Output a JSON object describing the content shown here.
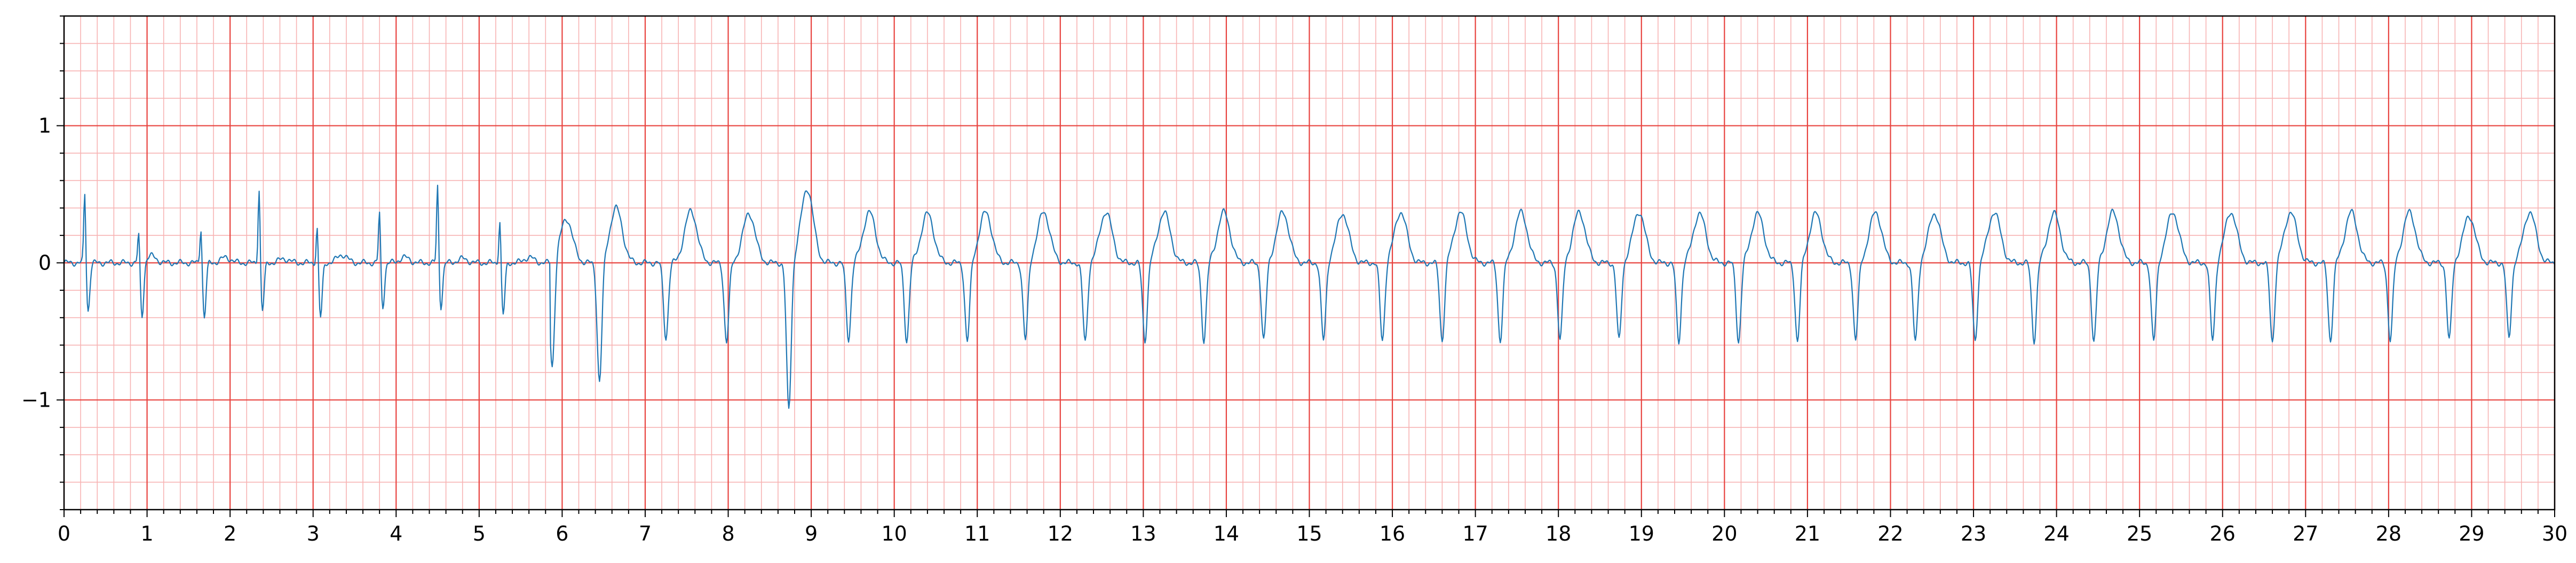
{
  "chart_data": {
    "type": "line",
    "title": "",
    "xlabel": "",
    "ylabel": "",
    "xlim": [
      0,
      30
    ],
    "ylim": [
      -1.8,
      1.8
    ],
    "grid": true,
    "x_ticks": [
      0,
      1,
      2,
      3,
      4,
      5,
      6,
      7,
      8,
      9,
      10,
      11,
      12,
      13,
      14,
      15,
      16,
      17,
      18,
      19,
      20,
      21,
      22,
      23,
      24,
      25,
      26,
      27,
      28,
      29,
      30
    ],
    "x_tick_labels": [
      "0",
      "1",
      "2",
      "3",
      "4",
      "5",
      "6",
      "7",
      "8",
      "9",
      "10",
      "11",
      "12",
      "13",
      "14",
      "15",
      "16",
      "17",
      "18",
      "19",
      "20",
      "21",
      "22",
      "23",
      "24",
      "25",
      "26",
      "27",
      "28",
      "29",
      "30"
    ],
    "y_ticks": [
      -1,
      0,
      1
    ],
    "y_tick_labels": [
      "−1",
      "0",
      "1"
    ],
    "major_grid_step": {
      "x": 1,
      "y": 1
    },
    "minor_grid_step": {
      "x": 0.2,
      "y": 0.2
    },
    "colors": {
      "trace": "#1f77b4",
      "major_grid": "#e8433f",
      "minor_grid": "#f7b3b3",
      "axes": "#000000"
    },
    "series": [
      {
        "sampled_every_s": 0.01,
        "segments": [
          {
            "start": 0,
            "beats": [
              {
                "t": 0.25,
                "r": 0.55,
                "s": -0.35,
                "tw": 0.0,
                "tx": 0.0
              },
              {
                "t": 0.9,
                "r": 0.25,
                "s": -0.4,
                "tw": 0.05,
                "tx": 1.05
              },
              {
                "t": 1.65,
                "r": 0.3,
                "s": -0.4,
                "tw": 0.04,
                "tx": 1.95
              },
              {
                "t": 2.35,
                "r": 0.58,
                "s": -0.35,
                "tw": 0.03,
                "tx": 2.65
              },
              {
                "t": 3.05,
                "r": 0.3,
                "s": -0.4,
                "tw": 0.06,
                "tx": 3.35
              },
              {
                "t": 3.8,
                "r": 0.4,
                "s": -0.32,
                "tw": 0.04,
                "tx": 4.1
              },
              {
                "t": 4.5,
                "r": 0.6,
                "s": -0.32,
                "tw": 0.03,
                "tx": 4.8
              },
              {
                "t": 5.25,
                "r": 0.35,
                "s": -0.38,
                "tw": 0.04,
                "tx": 5.6
              }
            ]
          },
          {
            "start": 5.85,
            "beats": [
              {
                "t": 5.88,
                "r": 0.0,
                "s": -0.78,
                "tw": 0.32,
                "tx": 6.05
              },
              {
                "t": 6.45,
                "r": 0.0,
                "s": -0.88,
                "tw": 0.4,
                "tx": 6.65
              },
              {
                "t": 7.25,
                "r": 0.0,
                "s": -0.55,
                "tw": 0.38,
                "tx": 7.55
              },
              {
                "t": 7.98,
                "r": 0.0,
                "s": -0.58,
                "tw": 0.36,
                "tx": 8.25
              },
              {
                "t": 8.73,
                "r": 0.0,
                "s": -1.08,
                "tw": 0.54,
                "tx": 8.95
              },
              {
                "t": 9.45,
                "r": 0.0,
                "s": -0.56,
                "tw": 0.37,
                "tx": 9.7
              },
              {
                "t": 10.15,
                "r": 0.0,
                "s": -0.57,
                "tw": 0.36,
                "tx": 10.4
              },
              {
                "t": 10.88,
                "r": 0.0,
                "s": -0.58,
                "tw": 0.37,
                "tx": 11.1
              },
              {
                "t": 11.58,
                "r": 0.0,
                "s": -0.57,
                "tw": 0.37,
                "tx": 11.8
              },
              {
                "t": 12.3,
                "r": 0.0,
                "s": -0.58,
                "tw": 0.37,
                "tx": 12.55
              },
              {
                "t": 13.02,
                "r": 0.0,
                "s": -0.57,
                "tw": 0.37,
                "tx": 13.25
              },
              {
                "t": 13.73,
                "r": 0.0,
                "s": -0.57,
                "tw": 0.37,
                "tx": 13.97
              },
              {
                "t": 14.45,
                "r": 0.0,
                "s": -0.57,
                "tw": 0.37,
                "tx": 14.68
              },
              {
                "t": 15.17,
                "r": 0.0,
                "s": -0.57,
                "tw": 0.36,
                "tx": 15.4
              },
              {
                "t": 15.88,
                "r": 0.0,
                "s": -0.57,
                "tw": 0.37,
                "tx": 16.1
              },
              {
                "t": 16.6,
                "r": 0.0,
                "s": -0.57,
                "tw": 0.37,
                "tx": 16.82
              },
              {
                "t": 17.3,
                "r": 0.0,
                "s": -0.57,
                "tw": 0.37,
                "tx": 17.55
              },
              {
                "t": 18.02,
                "r": 0.0,
                "s": -0.57,
                "tw": 0.37,
                "tx": 18.25
              },
              {
                "t": 18.73,
                "r": 0.0,
                "s": -0.57,
                "tw": 0.37,
                "tx": 18.97
              },
              {
                "t": 19.45,
                "r": 0.0,
                "s": -0.58,
                "tw": 0.36,
                "tx": 19.7
              },
              {
                "t": 20.17,
                "r": 0.0,
                "s": -0.58,
                "tw": 0.36,
                "tx": 20.4
              },
              {
                "t": 20.88,
                "r": 0.0,
                "s": -0.58,
                "tw": 0.36,
                "tx": 21.1
              },
              {
                "t": 21.58,
                "r": 0.0,
                "s": -0.57,
                "tw": 0.37,
                "tx": 21.82
              },
              {
                "t": 22.3,
                "r": 0.0,
                "s": -0.58,
                "tw": 0.36,
                "tx": 22.53
              },
              {
                "t": 23.02,
                "r": 0.0,
                "s": -0.57,
                "tw": 0.37,
                "tx": 23.25
              },
              {
                "t": 23.73,
                "r": 0.0,
                "s": -0.57,
                "tw": 0.36,
                "tx": 23.97
              },
              {
                "t": 24.45,
                "r": 0.0,
                "s": -0.58,
                "tw": 0.37,
                "tx": 24.68
              },
              {
                "t": 25.17,
                "r": 0.0,
                "s": -0.58,
                "tw": 0.37,
                "tx": 25.4
              },
              {
                "t": 25.88,
                "r": 0.0,
                "s": -0.57,
                "tw": 0.37,
                "tx": 26.1
              },
              {
                "t": 26.6,
                "r": 0.0,
                "s": -0.58,
                "tw": 0.37,
                "tx": 26.82
              },
              {
                "t": 27.3,
                "r": 0.0,
                "s": -0.57,
                "tw": 0.37,
                "tx": 27.55
              },
              {
                "t": 28.02,
                "r": 0.0,
                "s": -0.57,
                "tw": 0.37,
                "tx": 28.25
              },
              {
                "t": 28.73,
                "r": 0.0,
                "s": -0.57,
                "tw": 0.34,
                "tx": 28.97
              },
              {
                "t": 29.45,
                "r": 0.0,
                "s": -0.55,
                "tw": 0.37,
                "tx": 29.7
              }
            ]
          }
        ]
      }
    ]
  }
}
